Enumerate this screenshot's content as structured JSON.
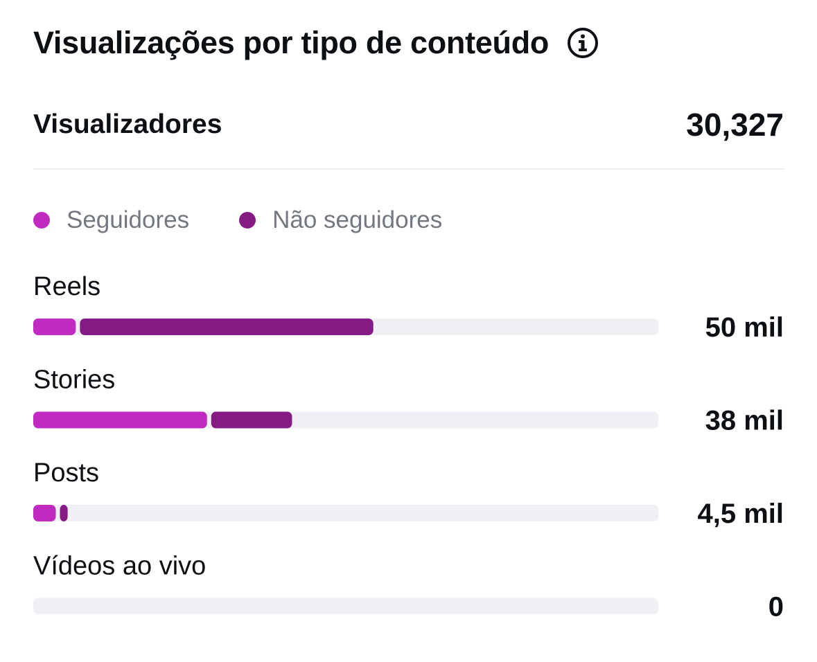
{
  "header": {
    "title": "Visualizações por tipo de conteúdo",
    "info_icon": "info-circle-icon"
  },
  "summary": {
    "label": "Visualizadores",
    "value": "30,327"
  },
  "colors": {
    "followers": "#c12ac1",
    "non_followers": "#861a84",
    "track": "#eff0f4"
  },
  "chart_data": {
    "type": "bar",
    "orientation": "horizontal",
    "stacked": true,
    "categories": [
      "Reels",
      "Stories",
      "Posts",
      "Vídeos ao vivo"
    ],
    "value_labels": [
      "50 mil",
      "38 mil",
      "4,5 mil",
      "0"
    ],
    "series": [
      {
        "name": "Seguidores",
        "values": [
          0.068,
          0.278,
          0.036,
          0
        ]
      },
      {
        "name": "Não seguidores",
        "values": [
          0.476,
          0.136,
          0.019,
          0
        ]
      }
    ],
    "xlim": [
      0,
      1
    ],
    "legend": "top-left",
    "grid": false
  }
}
